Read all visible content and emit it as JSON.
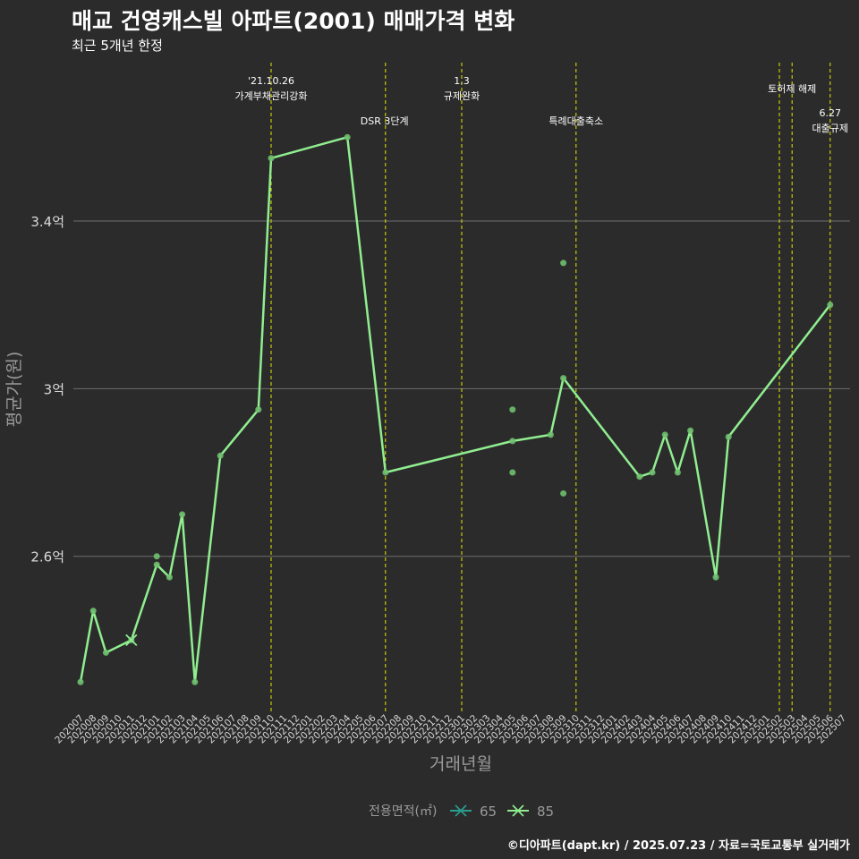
{
  "title": "매교 건영캐스빌 아파트(2001) 매매가격 변화",
  "subtitle": "최근 5개년 한정",
  "caption": "©디아파트(dapt.kr) / 2025.07.23 / 자료=국토교통부 실거래가",
  "colors": {
    "background": "#2b2b2b",
    "grid": "#6e6e6e",
    "line_85": "#90ee90",
    "line_65": "#2a9d8f",
    "policy_line": "#e6e600",
    "axis_text": "#d9d9d9",
    "axis_title": "#9a9a9a"
  },
  "chart_data": {
    "type": "line",
    "xlabel": "거래년월",
    "ylabel": "평균가(원)",
    "categories": [
      "202007",
      "202008",
      "202009",
      "202010",
      "202011",
      "202012",
      "202101",
      "202102",
      "202103",
      "202104",
      "202105",
      "202106",
      "202107",
      "202108",
      "202109",
      "202110",
      "202111",
      "202112",
      "202201",
      "202202",
      "202203",
      "202204",
      "202205",
      "202206",
      "202207",
      "202208",
      "202209",
      "202210",
      "202211",
      "202212",
      "202301",
      "202302",
      "202303",
      "202304",
      "202305",
      "202306",
      "202307",
      "202308",
      "202309",
      "202310",
      "202311",
      "202312",
      "202401",
      "202402",
      "202403",
      "202404",
      "202405",
      "202406",
      "202407",
      "202408",
      "202409",
      "202410",
      "202411",
      "202412",
      "202501",
      "202502",
      "202503",
      "202504",
      "202505",
      "202506",
      "202507"
    ],
    "ylim": [
      2.23,
      3.795
    ],
    "yticks": [
      {
        "value": 2.6,
        "label": "2.6억"
      },
      {
        "value": 3.0,
        "label": "3억"
      },
      {
        "value": 3.4,
        "label": "3.4억"
      }
    ],
    "legend": {
      "title": "전용면적(㎡)",
      "position": "bottom",
      "entries": [
        {
          "name": "65",
          "color": "#2a9d8f"
        },
        {
          "name": "85",
          "color": "#90ee90"
        }
      ]
    },
    "series": [
      {
        "name": "85",
        "points": [
          {
            "x": "202007",
            "y": 2.3
          },
          {
            "x": "202008",
            "y": 2.47
          },
          {
            "x": "202009",
            "y": 2.37
          },
          {
            "x": "202011",
            "y": 2.4
          },
          {
            "x": "202101",
            "y": 2.58
          },
          {
            "x": "202102",
            "y": 2.55
          },
          {
            "x": "202103",
            "y": 2.7
          },
          {
            "x": "202104",
            "y": 2.3
          },
          {
            "x": "202106",
            "y": 2.84
          },
          {
            "x": "202109",
            "y": 2.95
          },
          {
            "x": "202110",
            "y": 3.55
          },
          {
            "x": "202204",
            "y": 3.6
          },
          {
            "x": "202207",
            "y": 2.8
          },
          {
            "x": "202305",
            "y": 2.875
          },
          {
            "x": "202308",
            "y": 2.89
          },
          {
            "x": "202309",
            "y": 3.025
          },
          {
            "x": "202403",
            "y": 2.79
          },
          {
            "x": "202404",
            "y": 2.8
          },
          {
            "x": "202405",
            "y": 2.89
          },
          {
            "x": "202406",
            "y": 2.8
          },
          {
            "x": "202407",
            "y": 2.9
          },
          {
            "x": "202409",
            "y": 2.55
          },
          {
            "x": "202410",
            "y": 2.885
          },
          {
            "x": "202506",
            "y": 3.2
          }
        ]
      },
      {
        "name": "65",
        "points": [
          {
            "x": "202011",
            "y": 2.4
          }
        ]
      }
    ],
    "scatter_85": [
      {
        "x": "202101",
        "y": 2.6
      },
      {
        "x": "202305",
        "y": 2.95
      },
      {
        "x": "202305",
        "y": 2.8
      },
      {
        "x": "202309",
        "y": 3.3
      },
      {
        "x": "202309",
        "y": 2.75
      }
    ],
    "events": [
      {
        "x": "202110",
        "lines": [
          "'21.10.26",
          "가계부채관리강화"
        ],
        "level": 1
      },
      {
        "x": "202207",
        "lines": [
          "DSR 3단계"
        ],
        "level": 3,
        "side": "left"
      },
      {
        "x": "202301",
        "lines": [
          "1.3",
          "규제완화"
        ],
        "level": 1
      },
      {
        "x": "202310",
        "lines": [
          "특례대출축소"
        ],
        "level": 3
      },
      {
        "x": "202502",
        "lines": [],
        "level": 0
      },
      {
        "x": "202503",
        "lines": [
          "토허제 해제"
        ],
        "level": 2
      },
      {
        "x": "202506",
        "lines": [
          "6.27",
          "대출규제"
        ],
        "level": 4
      }
    ]
  }
}
